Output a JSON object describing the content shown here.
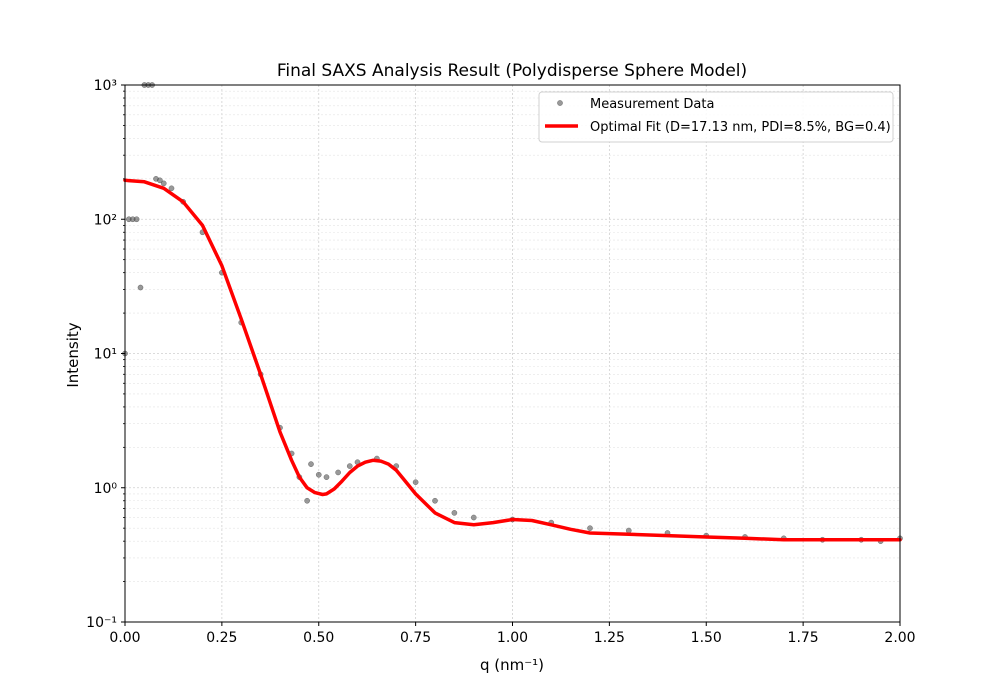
{
  "chart_data": {
    "type": "scatter",
    "title": "Final SAXS Analysis Result (Polydisperse Sphere Model)",
    "xlabel": "q (nm⁻¹)",
    "ylabel": "Intensity",
    "xlim": [
      0.0,
      2.0
    ],
    "ylim": [
      0.1,
      1000
    ],
    "yscale": "log",
    "grid": true,
    "legend_position": "top-right",
    "x_ticks": [
      "0.00",
      "0.25",
      "0.50",
      "0.75",
      "1.00",
      "1.25",
      "1.50",
      "1.75",
      "2.00"
    ],
    "y_ticks": [
      "10⁻¹",
      "10⁰",
      "10¹",
      "10²",
      "10³"
    ],
    "series": [
      {
        "name": "Measurement Data",
        "kind": "scatter",
        "color": "#555555",
        "x": [
          0.0,
          0.01,
          0.02,
          0.03,
          0.04,
          0.05,
          0.06,
          0.07,
          0.08,
          0.09,
          0.1,
          0.12,
          0.15,
          0.2,
          0.25,
          0.3,
          0.35,
          0.4,
          0.43,
          0.45,
          0.47,
          0.48,
          0.5,
          0.52,
          0.55,
          0.58,
          0.6,
          0.65,
          0.7,
          0.75,
          0.8,
          0.85,
          0.9,
          1.0,
          1.1,
          1.2,
          1.3,
          1.4,
          1.5,
          1.6,
          1.7,
          1.8,
          1.9,
          1.95,
          2.0
        ],
        "y": [
          10,
          100,
          100,
          100,
          31,
          1000,
          1000,
          1000,
          200,
          195,
          185,
          170,
          135,
          80,
          40,
          17,
          7,
          2.8,
          1.8,
          1.2,
          0.8,
          1.5,
          1.25,
          1.2,
          1.3,
          1.45,
          1.55,
          1.65,
          1.45,
          1.1,
          0.8,
          0.65,
          0.6,
          0.58,
          0.55,
          0.5,
          0.48,
          0.46,
          0.44,
          0.43,
          0.42,
          0.41,
          0.41,
          0.4,
          0.42
        ]
      },
      {
        "name": "Optimal Fit (D=17.13 nm, PDI=8.5%, BG=0.4)",
        "kind": "line",
        "color": "#ff0000",
        "x": [
          0.0,
          0.05,
          0.1,
          0.15,
          0.2,
          0.25,
          0.3,
          0.35,
          0.4,
          0.43,
          0.45,
          0.47,
          0.49,
          0.51,
          0.52,
          0.54,
          0.56,
          0.58,
          0.6,
          0.62,
          0.64,
          0.66,
          0.68,
          0.7,
          0.72,
          0.75,
          0.8,
          0.85,
          0.9,
          0.95,
          1.0,
          1.05,
          1.1,
          1.15,
          1.2,
          1.3,
          1.4,
          1.5,
          1.6,
          1.7,
          1.8,
          1.9,
          2.0
        ],
        "y": [
          195,
          190,
          170,
          135,
          90,
          45,
          18,
          7,
          2.6,
          1.6,
          1.2,
          1.0,
          0.92,
          0.89,
          0.9,
          0.98,
          1.12,
          1.3,
          1.45,
          1.55,
          1.6,
          1.58,
          1.5,
          1.35,
          1.15,
          0.9,
          0.65,
          0.55,
          0.53,
          0.55,
          0.58,
          0.57,
          0.53,
          0.49,
          0.46,
          0.45,
          0.44,
          0.43,
          0.42,
          0.41,
          0.41,
          0.41,
          0.41
        ]
      }
    ]
  }
}
